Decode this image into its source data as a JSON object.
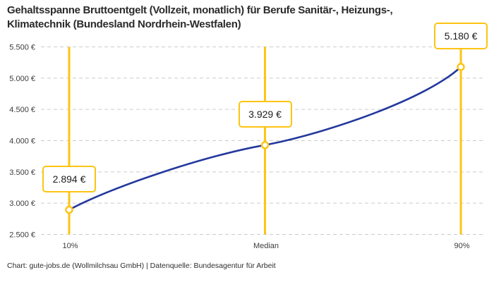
{
  "header": {
    "title_lines": [
      "Gehaltsspanne Bruttoentgelt (Vollzeit, monatlich) für Berufe Sanitär-, Heizungs-,",
      "Klimatechnik (Bundesland Nordrhein-Westfalen)"
    ]
  },
  "footer": {
    "credit": "Chart: gute-jobs.de (Wollmilchsau GmbH) | Datenquelle: Bundesagentur für Arbeit"
  },
  "colors": {
    "accent_yellow": "#FDC412",
    "curve_blue": "#23389D",
    "gridline_gray": "#CBCBCB",
    "title_text": "#2B2B2B",
    "tick_text": "#3C3C3C",
    "box_text": "#1D1D1D",
    "background": "#FFFFFF"
  },
  "chart_data": {
    "type": "line",
    "title": "Gehaltsspanne Bruttoentgelt (Vollzeit, monatlich) für Berufe Sanitär-, Heizungs-, Klimatechnik (Bundesland Nordrhein-Westfalen)",
    "categories": [
      "10%",
      "Median",
      "90%"
    ],
    "values": [
      2894,
      3929,
      5180
    ],
    "point_labels": [
      "2.894 €",
      "3.929 €",
      "5.180 €"
    ],
    "ylim": [
      2500,
      5500
    ],
    "y_ticks": [
      {
        "value": 2500,
        "label": "2.500 €"
      },
      {
        "value": 3000,
        "label": "3.000 €"
      },
      {
        "value": 3500,
        "label": "3.500 €"
      },
      {
        "value": 4000,
        "label": "4.000 €"
      },
      {
        "value": 4500,
        "label": "4.500 €"
      },
      {
        "value": 5000,
        "label": "5.000 €"
      },
      {
        "value": 5500,
        "label": "5.500 €"
      }
    ],
    "grid": "horizontal-dashed",
    "legend": "none",
    "marker": "open-circle"
  }
}
